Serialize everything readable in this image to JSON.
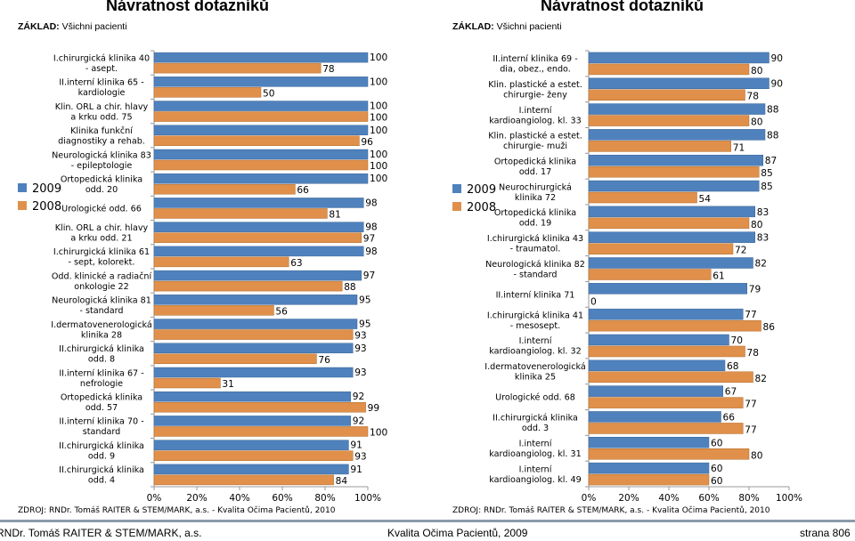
{
  "header": {
    "title_left": "Návratnost dotazníků",
    "title_right": "Návratnost dotazníků",
    "basis_label": "ZÁKLAD:",
    "basis_value": "Všichni pacienti"
  },
  "source_left": "ZDROJ: RNDr. Tomáš RAITER & STEM/MARK, a.s. -   Kvalita Očima Pacientů, 2010",
  "source_right": "ZDROJ: RNDr. Tomáš RAITER & STEM/MARK, a.s. -  Kvalita Očima Pacientů, 2010",
  "footer": {
    "author": "RNDr. Tomáš RAITER & STEM/MARK, a.s.",
    "subtitle": "Kvalita Očima Pacientů, 2009",
    "page": "strana 806"
  },
  "colors": {
    "y2009": "#4f81bd",
    "y2008": "#e0904a",
    "axis": "#999999"
  },
  "chart_data": [
    {
      "type": "bar",
      "orientation": "horizontal",
      "title": "Návratnost dotazníků",
      "xlim": [
        0,
        100
      ],
      "xticks": [
        "0%",
        "20%",
        "40%",
        "60%",
        "80%",
        "100%"
      ],
      "legend": [
        "2009",
        "2008"
      ],
      "categories": [
        [
          "I.chirurgická klinika 40",
          "- asept."
        ],
        [
          "II.interní klinika 65 -",
          "kardiologie"
        ],
        [
          "Klin. ORL a chir. hlavy",
          "a krku odd. 75"
        ],
        [
          "Klinika funkční",
          "diagnostiky a rehab."
        ],
        [
          "Neurologická klinika 83",
          "- epileptologie"
        ],
        [
          "Ortopedická klinika",
          "odd. 20"
        ],
        [
          "Urologické odd. 66"
        ],
        [
          "Klin. ORL a chir. hlavy",
          "a krku odd. 21"
        ],
        [
          "I.chirurgická klinika 61",
          "- sept, kolorekt."
        ],
        [
          "Odd. klinické a radiační",
          "onkologie 22"
        ],
        [
          "Neurologická klinika 81",
          "- standard"
        ],
        [
          "I.dermatovenerologická",
          "klinika 28"
        ],
        [
          "II.chirurgická klinika",
          "odd. 8"
        ],
        [
          "II.interní klinika 67 -",
          "nefrologie"
        ],
        [
          "Ortopedická klinika",
          "odd. 57"
        ],
        [
          "II.interní klinika 70 -",
          "standard"
        ],
        [
          "II.chirurgická klinika",
          "odd. 9"
        ],
        [
          "II.chirurgická klinika",
          "odd. 4"
        ]
      ],
      "series": [
        {
          "name": "2009",
          "values": [
            100,
            100,
            100,
            100,
            100,
            100,
            98,
            98,
            98,
            97,
            95,
            95,
            93,
            93,
            92,
            92,
            91,
            91
          ]
        },
        {
          "name": "2008",
          "values": [
            78,
            50,
            100,
            96,
            100,
            66,
            81,
            97,
            63,
            88,
            56,
            93,
            76,
            31,
            99,
            100,
            93,
            84
          ]
        }
      ]
    },
    {
      "type": "bar",
      "orientation": "horizontal",
      "title": "Návratnost dotazníků",
      "xlim": [
        0,
        100
      ],
      "xticks": [
        "0%",
        "20%",
        "40%",
        "60%",
        "80%",
        "100%"
      ],
      "legend": [
        "2009",
        "2008"
      ],
      "categories": [
        [
          "II.interní klinika 69 -",
          "dia, obez., endo."
        ],
        [
          "Klin. plastické a estet.",
          "chirurgie- ženy"
        ],
        [
          "I.interní",
          "kardioangiolog. kl. 33"
        ],
        [
          "Klin. plastické a estet.",
          "chirurgie- muži"
        ],
        [
          "Ortopedická klinika",
          "odd. 17"
        ],
        [
          "Neurochirurgická",
          "klinika 72"
        ],
        [
          "Ortopedická klinika",
          "odd. 19"
        ],
        [
          "I.chirurgická klinika 43",
          "- traumatol."
        ],
        [
          "Neurologická klinika 82",
          "- standard"
        ],
        [
          "II.interní klinika 71"
        ],
        [
          "I.chirurgická klinika 41",
          "- mesosept."
        ],
        [
          "I.interní",
          "kardioangiolog. kl. 32"
        ],
        [
          "I.dermatovenerologická",
          "klinika 25"
        ],
        [
          "Urologické odd. 68"
        ],
        [
          "II.chirurgická klinika",
          "odd. 3"
        ],
        [
          "I.interní",
          "kardioangiolog. kl. 31"
        ],
        [
          "I.interní",
          "kardioangiolog. kl. 49"
        ]
      ],
      "series": [
        {
          "name": "2009",
          "values": [
            90,
            90,
            88,
            88,
            87,
            85,
            83,
            83,
            82,
            79,
            77,
            70,
            68,
            67,
            66,
            60,
            60
          ]
        },
        {
          "name": "2008",
          "values": [
            80,
            78,
            80,
            71,
            85,
            54,
            80,
            72,
            61,
            0,
            86,
            78,
            82,
            77,
            77,
            80,
            60
          ]
        }
      ]
    }
  ]
}
